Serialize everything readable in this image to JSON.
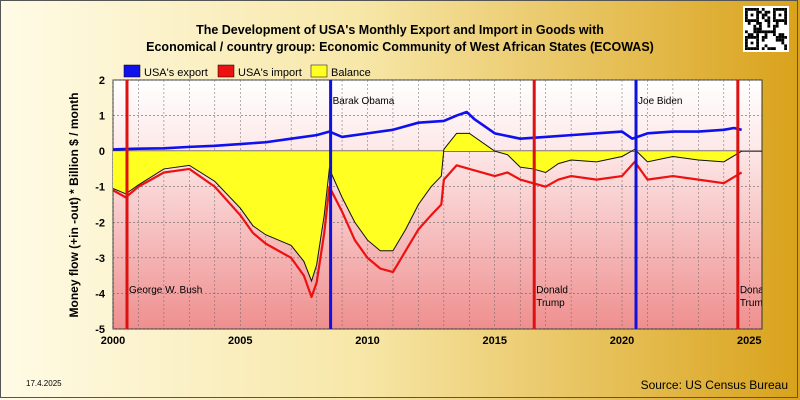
{
  "chart_data": {
    "type": "line",
    "title_line1": "The Development of USA's Monthly Export and Import in Goods with",
    "title_line2": "Economical / country group: Economic Community of West African States (ECOWAS)",
    "ylabel": "Money flow (+in -out) * Billion $ / month",
    "xlabel": "",
    "ylim": [
      -5,
      2
    ],
    "xlim": [
      2000,
      2025.5
    ],
    "y_ticks": [
      "2",
      "1",
      "0",
      "-1",
      "-2",
      "-3",
      "-4",
      "-5"
    ],
    "x_ticks": [
      "2000",
      "2005",
      "2010",
      "2015",
      "2020",
      "2025"
    ],
    "grid": true,
    "legend": {
      "placement": "top-left",
      "items": [
        "USA's export",
        "USA's import",
        "Balance"
      ]
    },
    "colors": {
      "export": "#1010ee",
      "import": "#ee1111",
      "balance": "#ffff22",
      "president_red": "#dd1111",
      "president_blue": "#1111dd"
    },
    "series": [
      {
        "name": "USA's export",
        "x": [
          2000.0,
          2001.0,
          2002.0,
          2003.0,
          2004.0,
          2005.0,
          2006.0,
          2007.0,
          2008.0,
          2008.5,
          2009.0,
          2010.0,
          2011.0,
          2012.0,
          2013.0,
          2013.5,
          2013.9,
          2014.2,
          2014.6,
          2015.0,
          2016.0,
          2017.0,
          2018.0,
          2019.0,
          2020.0,
          2020.4,
          2021.0,
          2022.0,
          2023.0,
          2024.0,
          2024.4,
          2024.7
        ],
        "values": [
          0.05,
          0.07,
          0.08,
          0.12,
          0.15,
          0.2,
          0.25,
          0.35,
          0.45,
          0.55,
          0.4,
          0.5,
          0.6,
          0.8,
          0.85,
          1.0,
          1.1,
          0.9,
          0.7,
          0.5,
          0.35,
          0.4,
          0.45,
          0.5,
          0.55,
          0.35,
          0.5,
          0.55,
          0.55,
          0.6,
          0.65,
          0.6
        ]
      },
      {
        "name": "USA's import",
        "x": [
          2000.0,
          2000.5,
          2001.0,
          2002.0,
          2003.0,
          2004.0,
          2005.0,
          2005.5,
          2006.0,
          2006.5,
          2007.0,
          2007.5,
          2007.8,
          2008.0,
          2008.3,
          2008.5,
          2009.0,
          2009.5,
          2010.0,
          2010.5,
          2011.0,
          2011.5,
          2012.0,
          2012.5,
          2012.9,
          2013.0,
          2013.5,
          2014.0,
          2015.0,
          2015.5,
          2016.0,
          2016.5,
          2017.0,
          2017.5,
          2018.0,
          2019.0,
          2020.0,
          2020.5,
          2021.0,
          2022.0,
          2023.0,
          2024.0,
          2024.7
        ],
        "values": [
          -1.1,
          -1.3,
          -1.0,
          -0.6,
          -0.5,
          -1.0,
          -1.8,
          -2.3,
          -2.6,
          -2.8,
          -3.0,
          -3.5,
          -4.1,
          -3.7,
          -2.3,
          -1.0,
          -1.7,
          -2.5,
          -3.0,
          -3.3,
          -3.4,
          -2.8,
          -2.2,
          -1.8,
          -1.5,
          -0.8,
          -0.4,
          -0.5,
          -0.7,
          -0.6,
          -0.8,
          -0.9,
          -1.0,
          -0.8,
          -0.7,
          -0.8,
          -0.7,
          -0.3,
          -0.8,
          -0.7,
          -0.8,
          -0.9,
          -0.6
        ]
      },
      {
        "name": "Balance",
        "x": [
          2000.0,
          2000.5,
          2001.0,
          2002.0,
          2003.0,
          2004.0,
          2005.0,
          2005.5,
          2006.0,
          2006.5,
          2007.0,
          2007.5,
          2007.8,
          2008.0,
          2008.3,
          2008.5,
          2009.0,
          2009.5,
          2010.0,
          2010.5,
          2011.0,
          2011.5,
          2012.0,
          2012.5,
          2012.9,
          2013.0,
          2013.5,
          2014.0,
          2015.0,
          2015.5,
          2016.0,
          2016.5,
          2017.0,
          2017.5,
          2018.0,
          2019.0,
          2020.0,
          2020.5,
          2021.0,
          2022.0,
          2023.0,
          2024.0,
          2024.7
        ],
        "values": [
          -1.05,
          -1.2,
          -0.95,
          -0.5,
          -0.4,
          -0.85,
          -1.6,
          -2.1,
          -2.35,
          -2.5,
          -2.65,
          -3.1,
          -3.65,
          -3.2,
          -1.8,
          -0.5,
          -1.3,
          -2.0,
          -2.5,
          -2.8,
          -2.8,
          -2.2,
          -1.5,
          -1.0,
          -0.7,
          0.05,
          0.5,
          0.5,
          0.0,
          -0.1,
          -0.45,
          -0.5,
          -0.6,
          -0.35,
          -0.25,
          -0.3,
          -0.15,
          0.05,
          -0.3,
          -0.15,
          -0.25,
          -0.3,
          0.0
        ]
      }
    ],
    "presidents": [
      {
        "label": "George W. Bush",
        "x": 2000.55,
        "color": "red"
      },
      {
        "label": "Barak Obama",
        "x": 2008.55,
        "color": "blue"
      },
      {
        "label": "Donald Trump",
        "x": 2016.55,
        "color": "red"
      },
      {
        "label": "Joe Biden",
        "x": 2020.55,
        "color": "blue"
      },
      {
        "label": "Donald Trump",
        "x": 2024.55,
        "color": "red"
      }
    ],
    "date_label": "17.4.2025",
    "source": "Source: US Census Bureau"
  }
}
